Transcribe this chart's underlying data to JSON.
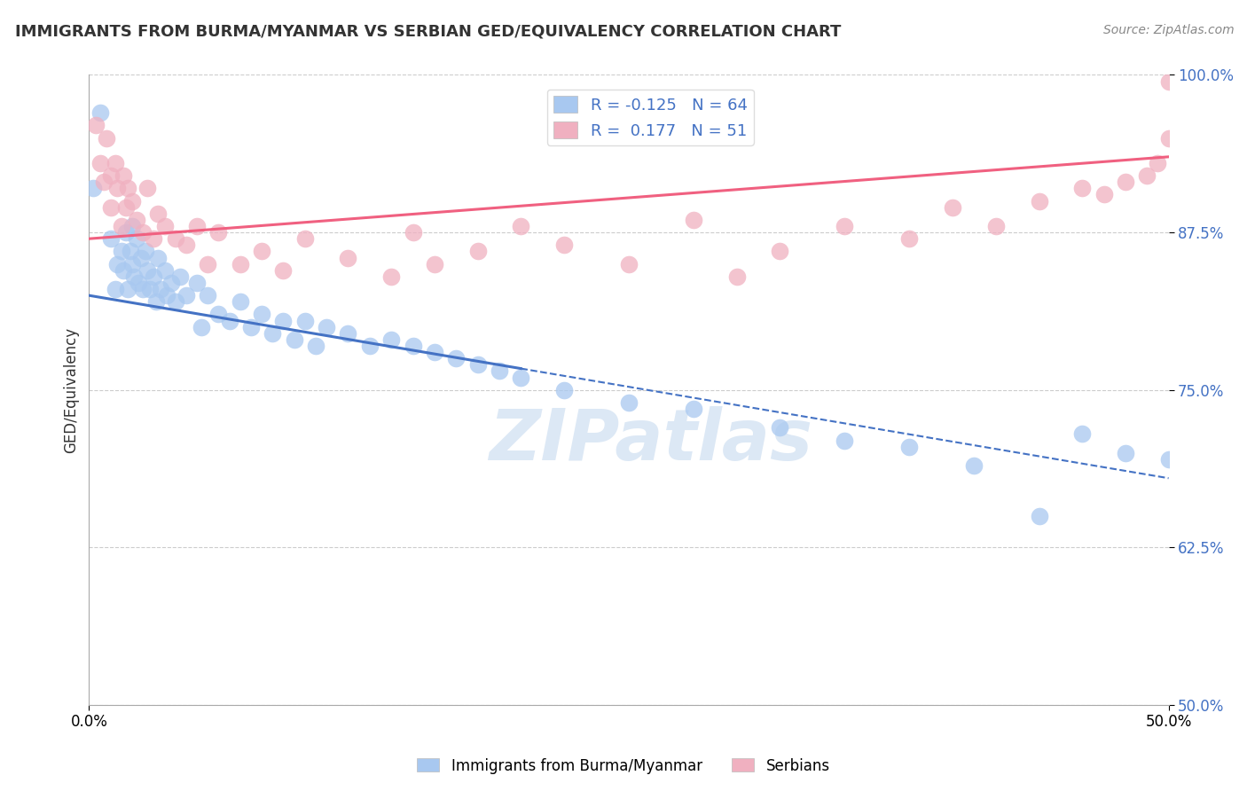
{
  "title": "IMMIGRANTS FROM BURMA/MYANMAR VS SERBIAN GED/EQUIVALENCY CORRELATION CHART",
  "source": "Source: ZipAtlas.com",
  "ylabel": "GED/Equivalency",
  "yticks": [
    50.0,
    62.5,
    75.0,
    87.5,
    100.0
  ],
  "xlim": [
    0.0,
    50.0
  ],
  "ylim": [
    50.0,
    100.0
  ],
  "blue_color": "#a8c8f0",
  "pink_color": "#f0b0c0",
  "blue_line_color": "#4472c4",
  "pink_line_color": "#f06080",
  "watermark": "ZIPatlas",
  "blue_line_x0": 0.0,
  "blue_line_y0": 82.5,
  "blue_line_x1": 50.0,
  "blue_line_y1": 68.0,
  "blue_solid_end": 20.0,
  "pink_line_x0": 0.0,
  "pink_line_y0": 87.0,
  "pink_line_x1": 50.0,
  "pink_line_y1": 93.5,
  "blue_scatter_x": [
    0.2,
    0.5,
    1.0,
    1.2,
    1.3,
    1.5,
    1.6,
    1.7,
    1.8,
    1.9,
    2.0,
    2.0,
    2.1,
    2.2,
    2.3,
    2.4,
    2.5,
    2.6,
    2.7,
    2.8,
    3.0,
    3.1,
    3.2,
    3.3,
    3.5,
    3.6,
    3.8,
    4.0,
    4.2,
    4.5,
    5.0,
    5.2,
    5.5,
    6.0,
    6.5,
    7.0,
    7.5,
    8.0,
    8.5,
    9.0,
    9.5,
    10.0,
    10.5,
    11.0,
    12.0,
    13.0,
    14.0,
    15.0,
    16.0,
    17.0,
    18.0,
    19.0,
    20.0,
    22.0,
    25.0,
    28.0,
    32.0,
    35.0,
    38.0,
    41.0,
    44.0,
    46.0,
    48.0,
    50.0
  ],
  "blue_scatter_y": [
    91.0,
    97.0,
    87.0,
    83.0,
    85.0,
    86.0,
    84.5,
    87.5,
    83.0,
    86.0,
    85.0,
    88.0,
    84.0,
    87.0,
    83.5,
    85.5,
    83.0,
    86.0,
    84.5,
    83.0,
    84.0,
    82.0,
    85.5,
    83.0,
    84.5,
    82.5,
    83.5,
    82.0,
    84.0,
    82.5,
    83.5,
    80.0,
    82.5,
    81.0,
    80.5,
    82.0,
    80.0,
    81.0,
    79.5,
    80.5,
    79.0,
    80.5,
    78.5,
    80.0,
    79.5,
    78.5,
    79.0,
    78.5,
    78.0,
    77.5,
    77.0,
    76.5,
    76.0,
    75.0,
    74.0,
    73.5,
    72.0,
    71.0,
    70.5,
    69.0,
    65.0,
    71.5,
    70.0,
    69.5
  ],
  "pink_scatter_x": [
    0.3,
    0.5,
    0.7,
    0.8,
    1.0,
    1.0,
    1.2,
    1.3,
    1.5,
    1.6,
    1.7,
    1.8,
    2.0,
    2.2,
    2.5,
    2.7,
    3.0,
    3.2,
    3.5,
    4.0,
    4.5,
    5.0,
    5.5,
    6.0,
    7.0,
    8.0,
    9.0,
    10.0,
    12.0,
    14.0,
    15.0,
    16.0,
    18.0,
    20.0,
    22.0,
    25.0,
    28.0,
    30.0,
    32.0,
    35.0,
    38.0,
    40.0,
    42.0,
    44.0,
    46.0,
    47.0,
    48.0,
    49.0,
    49.5,
    50.0,
    50.0
  ],
  "pink_scatter_y": [
    96.0,
    93.0,
    91.5,
    95.0,
    92.0,
    89.5,
    93.0,
    91.0,
    88.0,
    92.0,
    89.5,
    91.0,
    90.0,
    88.5,
    87.5,
    91.0,
    87.0,
    89.0,
    88.0,
    87.0,
    86.5,
    88.0,
    85.0,
    87.5,
    85.0,
    86.0,
    84.5,
    87.0,
    85.5,
    84.0,
    87.5,
    85.0,
    86.0,
    88.0,
    86.5,
    85.0,
    88.5,
    84.0,
    86.0,
    88.0,
    87.0,
    89.5,
    88.0,
    90.0,
    91.0,
    90.5,
    91.5,
    92.0,
    93.0,
    99.5,
    95.0
  ]
}
